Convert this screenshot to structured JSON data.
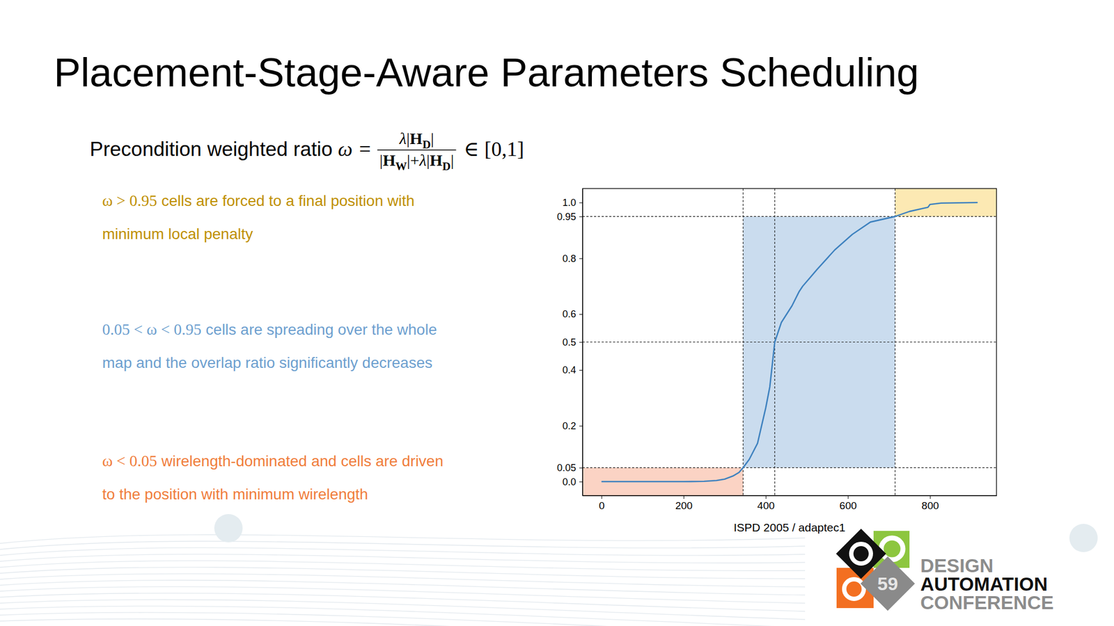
{
  "slide": {
    "title": "Placement-Stage-Aware Parameters Scheduling",
    "formula": {
      "label": "Precondition weighted ratio",
      "symbol": "ω",
      "equals": "=",
      "numerator": [
        {
          "t": "λ",
          "i": true
        },
        {
          "t": "|"
        },
        {
          "t": "H",
          "b": true
        },
        {
          "t": "D",
          "b": true,
          "sub": true
        },
        {
          "t": "|"
        }
      ],
      "denominator": [
        {
          "t": "|"
        },
        {
          "t": "H",
          "b": true
        },
        {
          "t": "W",
          "b": true,
          "sub": true
        },
        {
          "t": "|+"
        },
        {
          "t": "λ",
          "i": true
        },
        {
          "t": "|"
        },
        {
          "t": "H",
          "b": true
        },
        {
          "t": "D",
          "b": true,
          "sub": true
        },
        {
          "t": "|"
        }
      ],
      "membership": "∈",
      "interval": "[0,1]"
    },
    "items": [
      {
        "condition": "ω > 0.95",
        "lines": [
          "cells are forced to a final position with",
          "minimum local penalty"
        ],
        "color": "#bf9000"
      },
      {
        "condition": "0.05 < ω < 0.95",
        "lines": [
          "cells are spreading over the whole",
          "map and the overlap ratio significantly decreases"
        ],
        "color": "#6d9fcf"
      },
      {
        "condition": "ω < 0.05",
        "lines": [
          "wirelength-dominated and cells are driven",
          "to the position with minimum wirelength"
        ],
        "color": "#f07d3b"
      }
    ],
    "logo": {
      "number": "59",
      "lines": [
        "DESIGN",
        "AUTOMATION",
        "CONFERENCE"
      ]
    }
  },
  "chart_data": {
    "type": "line",
    "xlabel": "ISPD 2005 / adaptec1",
    "x": [
      0,
      50,
      100,
      150,
      200,
      250,
      280,
      300,
      320,
      335,
      345,
      360,
      380,
      400,
      410,
      416,
      422,
      438,
      464,
      481,
      490,
      525,
      568,
      611,
      655,
      715,
      750,
      780,
      795,
      800,
      827,
      870,
      916
    ],
    "series": [
      {
        "color": "#3f82bf",
        "values": [
          0,
          0,
          0,
          0,
          0,
          0.001,
          0.004,
          0.009,
          0.02,
          0.033,
          0.05,
          0.08,
          0.137,
          0.264,
          0.34,
          0.42,
          0.5,
          0.57,
          0.63,
          0.68,
          0.7,
          0.76,
          0.83,
          0.886,
          0.93,
          0.95,
          0.968,
          0.978,
          0.983,
          0.993,
          0.998,
          0.999,
          1.0
        ]
      }
    ],
    "xlim": [
      -46,
      962
    ],
    "ylim": [
      -0.05,
      1.05
    ],
    "xticks": [
      0,
      200,
      400,
      600,
      800
    ],
    "yticks": [
      {
        "value": 0,
        "label": "0.0"
      },
      0.05,
      0.2,
      0.4,
      0.5,
      0.6,
      0.8,
      0.95,
      {
        "value": 1,
        "label": "1.0"
      }
    ],
    "grid": false,
    "regions": [
      {
        "x": [
          -46,
          345
        ],
        "y": [
          -0.05,
          0.05
        ],
        "color": "#fbd3c4"
      },
      {
        "x": [
          345,
          715
        ],
        "y": [
          0.05,
          0.95
        ],
        "color": "#cadcee"
      },
      {
        "x": [
          715,
          962
        ],
        "y": [
          0.95,
          1.05
        ],
        "color": "#fce9b3"
      }
    ],
    "vlines": [
      345,
      422,
      715
    ],
    "hlines": [
      0.05,
      0.5,
      0.95
    ]
  }
}
